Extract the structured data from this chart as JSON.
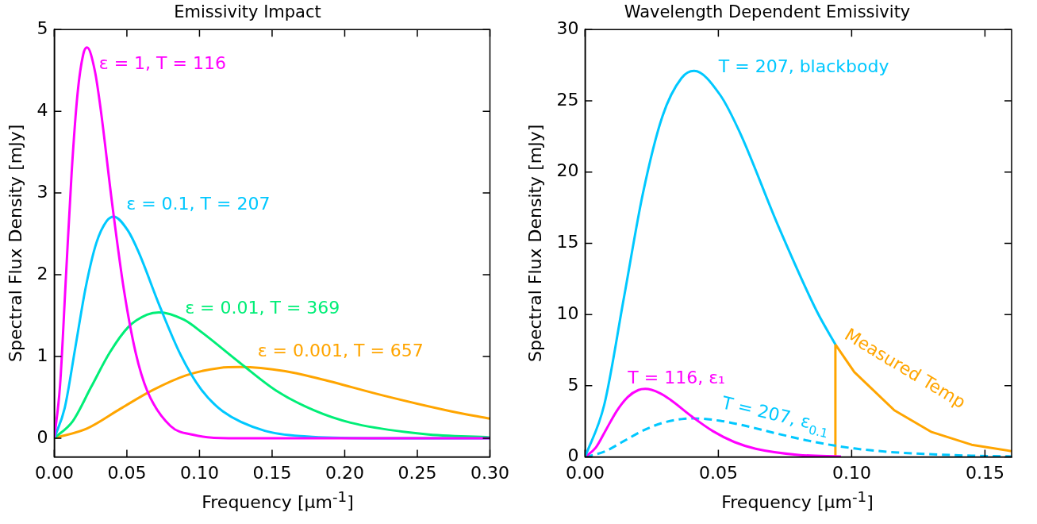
{
  "chart_data": [
    {
      "type": "line",
      "title": "Emissivity Impact",
      "xlabel": "Frequency [μm$^{-1}$]",
      "ylabel": "Spectral Flux Density [mJy]",
      "xlim": [
        0,
        0.3
      ],
      "ylim": [
        -0.23,
        5
      ],
      "xticks": [
        {
          "value": 0,
          "label": "0.00"
        },
        {
          "value": 0.05,
          "label": "0.05"
        },
        {
          "value": 0.1,
          "label": "0.10"
        },
        {
          "value": 0.15,
          "label": "0.15"
        },
        {
          "value": 0.2,
          "label": "0.20"
        },
        {
          "value": 0.25,
          "label": "0.25"
        },
        {
          "value": 0.3,
          "label": "0.30"
        }
      ],
      "yticks": [
        0,
        1,
        2,
        3,
        4,
        5
      ],
      "grid": false,
      "marker": "none",
      "series": [
        {
          "name": "ε = 1, T = 116",
          "color": "#ff00ff",
          "x": [
            0,
            0.004,
            0.008,
            0.012,
            0.016,
            0.02,
            0.0226,
            0.028,
            0.032,
            0.04,
            0.048,
            0.056,
            0.064,
            0.08,
            0.096,
            0.12,
            0.3
          ],
          "values": [
            0,
            0.65,
            1.96,
            3.26,
            4.21,
            4.7,
            4.78,
            4.49,
            4.02,
            2.85,
            1.81,
            1.05,
            0.58,
            0.15,
            0.04,
            0,
            0
          ]
        },
        {
          "name": "ε = 0.1, T = 207",
          "color": "#00c8ff",
          "x": [
            0,
            0.0072,
            0.0145,
            0.0217,
            0.029,
            0.0362,
            0.0409,
            0.0507,
            0.058,
            0.0725,
            0.087,
            0.101,
            0.116,
            0.145,
            0.174,
            0.217,
            0.3
          ],
          "values": [
            0,
            0.37,
            1.11,
            1.85,
            2.39,
            2.66,
            2.71,
            2.54,
            2.28,
            1.62,
            1.02,
            0.6,
            0.33,
            0.09,
            0.02,
            0,
            0
          ]
        },
        {
          "name": "ε = 0.01, T = 369",
          "color": "#00ee77",
          "x": [
            0,
            0.0128,
            0.0255,
            0.0383,
            0.051,
            0.0638,
            0.072,
            0.0893,
            0.102,
            0.128,
            0.153,
            0.179,
            0.204,
            0.255,
            0.3
          ],
          "values": [
            0,
            0.21,
            0.63,
            1.05,
            1.36,
            1.51,
            1.54,
            1.45,
            1.29,
            0.92,
            0.58,
            0.34,
            0.19,
            0.05,
            0.01
          ]
        },
        {
          "name": "ε = 0.001, T = 657",
          "color": "#ffa500",
          "x": [
            0,
            0.0227,
            0.0455,
            0.068,
            0.091,
            0.114,
            0.128,
            0.159,
            0.182,
            0.227,
            0.273,
            0.3
          ],
          "values": [
            0,
            0.12,
            0.36,
            0.59,
            0.77,
            0.86,
            0.87,
            0.82,
            0.73,
            0.52,
            0.33,
            0.24
          ]
        }
      ]
    },
    {
      "type": "line",
      "title": "Wavelength Dependent Emissivity",
      "xlabel": "Frequency [μm$^{-1}$]",
      "ylabel": "Spectral Flux Density [mJy]",
      "xlim": [
        0,
        0.16
      ],
      "ylim": [
        0,
        30
      ],
      "xticks": [
        {
          "value": 0,
          "label": "0.00"
        },
        {
          "value": 0.05,
          "label": "0.05"
        },
        {
          "value": 0.1,
          "label": "0.10"
        },
        {
          "value": 0.15,
          "label": "0.15"
        }
      ],
      "yticks": [
        0,
        5,
        10,
        15,
        20,
        25,
        30
      ],
      "grid": false,
      "marker": "none",
      "series": [
        {
          "name": "T = 207, blackbody",
          "color": "#00c8ff",
          "x": [
            0,
            0.0072,
            0.0145,
            0.0217,
            0.029,
            0.0362,
            0.0409,
            0.0507,
            0.058,
            0.0725,
            0.087,
            0.0939
          ],
          "values": [
            0,
            3.67,
            11.1,
            18.5,
            23.9,
            26.6,
            27.1,
            25.4,
            22.8,
            16.2,
            10.2,
            7.9
          ]
        },
        {
          "name": "T = 116, ε₁",
          "color": "#ff00ff",
          "x": [
            0,
            0.004,
            0.008,
            0.012,
            0.016,
            0.02,
            0.0226,
            0.028,
            0.032,
            0.04,
            0.048,
            0.056,
            0.064,
            0.08,
            0.096
          ],
          "values": [
            0,
            0.65,
            1.96,
            3.26,
            4.21,
            4.7,
            4.78,
            4.49,
            4.02,
            2.85,
            1.81,
            1.05,
            0.58,
            0.15,
            0.04
          ]
        },
        {
          "name": "T = 207, ε$_{0.1}$",
          "color": "#00c8ff",
          "line_style": "dashed",
          "x": [
            0,
            0.0072,
            0.0145,
            0.0217,
            0.029,
            0.0362,
            0.0409,
            0.0507,
            0.058,
            0.0725,
            0.087,
            0.101,
            0.116,
            0.145,
            0.16
          ],
          "values": [
            0,
            0.37,
            1.11,
            1.85,
            2.39,
            2.66,
            2.71,
            2.54,
            2.28,
            1.62,
            1.02,
            0.6,
            0.33,
            0.09,
            0.04
          ]
        },
        {
          "name": "Measured Temp",
          "color": "#ffa500",
          "x": [
            0.0939,
            0.0939,
            0.101,
            0.116,
            0.13,
            0.145,
            0.16
          ],
          "values": [
            0,
            7.9,
            5.96,
            3.28,
            1.75,
            0.86,
            0.41
          ]
        }
      ]
    }
  ]
}
